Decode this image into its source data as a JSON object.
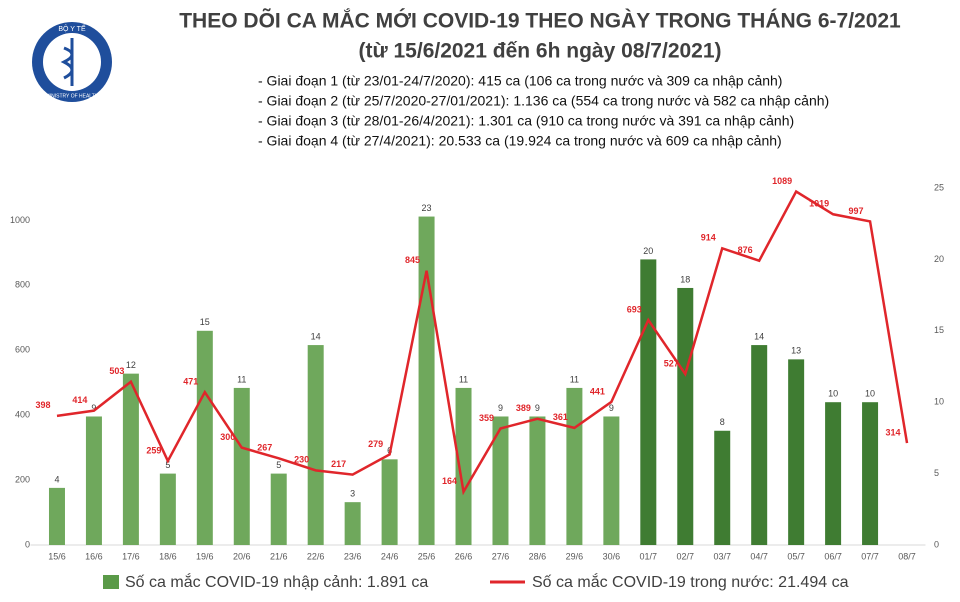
{
  "logo": {
    "top": "BỘ Y TẾ",
    "bottom": "MINISTRY OF HEALTH"
  },
  "chart_data": {
    "type": "combo",
    "title": "THEO DÕI CA MẮC MỚI COVID-19 THEO NGÀY TRONG THÁNG 6-7/2021",
    "subtitle": "(từ 15/6/2021 đến 6h ngày 08/7/2021)",
    "notes": [
      "- Giai đoạn 1 (từ 23/01-24/7/2020): 415 ca (106 ca trong nước và 309 ca nhập cảnh)",
      "- Giai đoạn 2 (từ 25/7/2020-27/01/2021): 1.136 ca (554 ca trong nước và 582 ca nhập cảnh)",
      "- Giai đoạn 3 (từ 28/01-26/4/2021): 1.301 ca (910 ca trong nước và 391 ca nhập cảnh)",
      "- Giai đoạn 4 (từ 27/4/2021): 20.533 ca (19.924 ca trong nước và 609 ca nhập cảnh)"
    ],
    "categories": [
      "15/6",
      "16/6",
      "17/6",
      "18/6",
      "19/6",
      "20/6",
      "21/6",
      "22/6",
      "23/6",
      "24/6",
      "25/6",
      "26/6",
      "27/6",
      "28/6",
      "29/6",
      "30/6",
      "01/7",
      "02/7",
      "03/7",
      "04/7",
      "05/7",
      "06/7",
      "07/7",
      "08/7"
    ],
    "series": [
      {
        "name": "Số ca mắc COVID-19 nhập cảnh: 1.891 ca",
        "type": "bar",
        "axis": "y2",
        "color": "#5a9a48",
        "colors": [
          "#6fa85c",
          "#6fa85c",
          "#6fa85c",
          "#6fa85c",
          "#6fa85c",
          "#6fa85c",
          "#6fa85c",
          "#6fa85c",
          "#6fa85c",
          "#6fa85c",
          "#6fa85c",
          "#6fa85c",
          "#6fa85c",
          "#6fa85c",
          "#6fa85c",
          "#6fa85c",
          "#3f7c32",
          "#3f7c32",
          "#3f7c32",
          "#3f7c32",
          "#3f7c32",
          "#3f7c32",
          "#3f7c32",
          null
        ],
        "values": [
          4,
          9,
          12,
          5,
          15,
          11,
          5,
          14,
          3,
          6,
          23,
          11,
          9,
          9,
          11,
          9,
          20,
          18,
          8,
          14,
          13,
          10,
          10,
          null
        ]
      },
      {
        "name": "Số ca mắc COVID-19 trong nước: 21.494 ca",
        "type": "line",
        "color": "#e0262b",
        "values": [
          398,
          414,
          503,
          259,
          471,
          300,
          267,
          230,
          217,
          279,
          845,
          164,
          359,
          389,
          361,
          441,
          693,
          527,
          914,
          876,
          1089,
          1019,
          997,
          314
        ]
      }
    ],
    "ylim": [
      0,
      1100
    ],
    "yticks": [
      0,
      200,
      400,
      600,
      800,
      1000
    ],
    "y2lim": [
      0,
      25
    ],
    "y2ticks": [
      0,
      5,
      10,
      15,
      20,
      25
    ]
  }
}
